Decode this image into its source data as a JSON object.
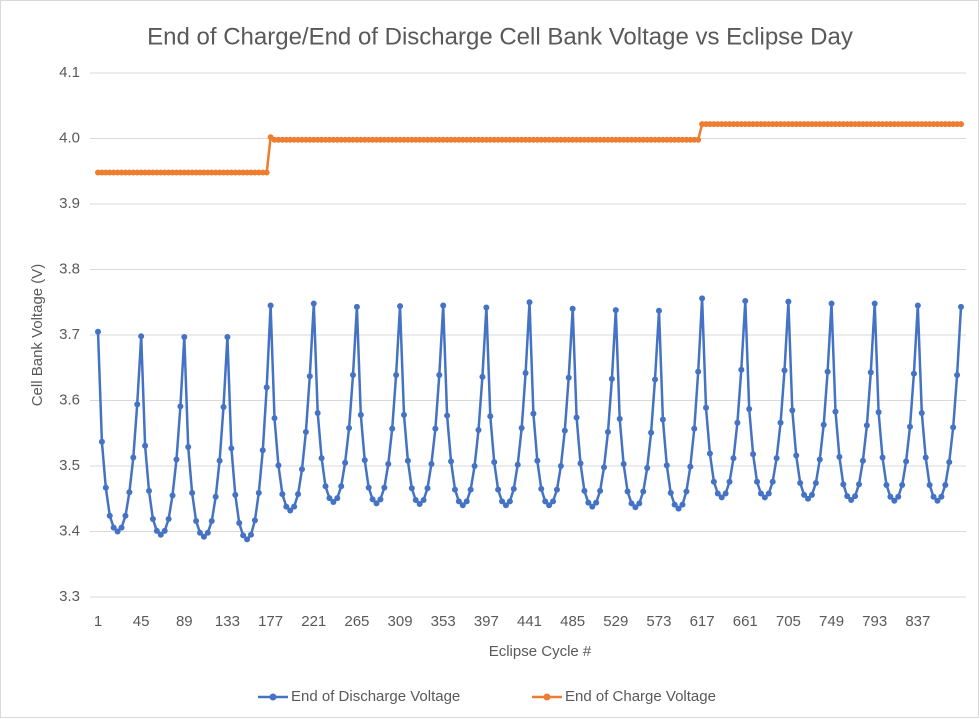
{
  "chart_data": {
    "type": "line",
    "title": "End of Charge/End of Discharge Cell Bank Voltage vs Eclipse Day",
    "xlabel": "Eclipse Cycle #",
    "ylabel": "Cell Bank Voltage (V)",
    "xlim": [
      1,
      881
    ],
    "xticks": [
      1,
      45,
      89,
      133,
      177,
      221,
      265,
      309,
      353,
      397,
      441,
      485,
      529,
      573,
      617,
      661,
      705,
      749,
      793,
      837
    ],
    "ylim": [
      3.3,
      4.1
    ],
    "yticks": [
      3.3,
      3.4,
      3.5,
      3.6,
      3.7,
      3.8,
      3.9,
      {
        "value": 4,
        "label": "4.0"
      },
      4.1
    ],
    "grid": true,
    "legend": "bottom",
    "x": [
      1,
      5,
      9,
      13,
      17,
      21,
      25,
      29,
      33,
      37,
      41,
      45,
      49,
      53,
      57,
      61,
      65,
      69,
      73,
      77,
      81,
      85,
      89,
      93,
      97,
      101,
      105,
      109,
      113,
      117,
      121,
      125,
      129,
      133,
      137,
      141,
      145,
      149,
      153,
      157,
      161,
      165,
      169,
      173,
      177,
      181,
      185,
      189,
      193,
      197,
      201,
      205,
      209,
      213,
      217,
      221,
      225,
      229,
      233,
      237,
      241,
      245,
      249,
      253,
      257,
      261,
      265,
      269,
      273,
      277,
      281,
      285,
      289,
      293,
      297,
      301,
      305,
      309,
      313,
      317,
      321,
      325,
      329,
      333,
      337,
      341,
      345,
      349,
      353,
      357,
      361,
      365,
      369,
      373,
      377,
      381,
      385,
      389,
      393,
      397,
      401,
      405,
      409,
      413,
      417,
      421,
      425,
      429,
      433,
      437,
      441,
      445,
      449,
      453,
      457,
      461,
      465,
      469,
      473,
      477,
      481,
      485,
      489,
      493,
      497,
      501,
      505,
      509,
      513,
      517,
      521,
      525,
      529,
      533,
      537,
      541,
      545,
      549,
      553,
      557,
      561,
      565,
      569,
      573,
      577,
      581,
      585,
      589,
      593,
      597,
      601,
      605,
      609,
      613,
      617,
      621,
      625,
      629,
      633,
      637,
      641,
      645,
      649,
      653,
      657,
      661,
      665,
      669,
      673,
      677,
      681,
      685,
      689,
      693,
      697,
      701,
      705,
      709,
      713,
      717,
      721,
      725,
      729,
      733,
      737,
      741,
      745,
      749,
      753,
      757,
      761,
      765,
      769,
      773,
      777,
      781,
      785,
      789,
      793,
      797,
      801,
      805,
      809,
      813,
      817,
      821,
      825,
      829,
      833,
      837,
      841,
      845,
      849,
      853,
      857,
      861,
      865,
      869,
      873,
      877,
      881
    ],
    "series": [
      {
        "name": "End of Discharge Voltage",
        "color": "#4472c4",
        "values": [
          3.705,
          3.537,
          3.467,
          3.424,
          3.406,
          3.4,
          3.406,
          3.424,
          3.46,
          3.513,
          3.594,
          3.698,
          3.531,
          3.462,
          3.419,
          3.401,
          3.395,
          3.401,
          3.419,
          3.455,
          3.51,
          3.591,
          3.697,
          3.529,
          3.459,
          3.416,
          3.398,
          3.392,
          3.398,
          3.416,
          3.453,
          3.508,
          3.59,
          3.697,
          3.527,
          3.456,
          3.413,
          3.394,
          3.388,
          3.395,
          3.417,
          3.459,
          3.524,
          3.62,
          3.745,
          3.573,
          3.501,
          3.457,
          3.438,
          3.432,
          3.438,
          3.457,
          3.495,
          3.552,
          3.637,
          3.748,
          3.581,
          3.512,
          3.469,
          3.451,
          3.445,
          3.451,
          3.469,
          3.505,
          3.558,
          3.639,
          3.743,
          3.578,
          3.509,
          3.467,
          3.449,
          3.443,
          3.449,
          3.467,
          3.503,
          3.557,
          3.639,
          3.744,
          3.578,
          3.508,
          3.466,
          3.448,
          3.442,
          3.448,
          3.466,
          3.503,
          3.557,
          3.639,
          3.745,
          3.577,
          3.507,
          3.464,
          3.446,
          3.44,
          3.446,
          3.464,
          3.5,
          3.555,
          3.636,
          3.742,
          3.576,
          3.506,
          3.464,
          3.446,
          3.44,
          3.446,
          3.465,
          3.502,
          3.558,
          3.642,
          3.75,
          3.58,
          3.508,
          3.465,
          3.446,
          3.44,
          3.446,
          3.464,
          3.5,
          3.554,
          3.635,
          3.74,
          3.574,
          3.504,
          3.462,
          3.444,
          3.438,
          3.444,
          3.462,
          3.498,
          3.552,
          3.633,
          3.738,
          3.572,
          3.503,
          3.461,
          3.443,
          3.437,
          3.443,
          3.461,
          3.497,
          3.551,
          3.632,
          3.737,
          3.571,
          3.501,
          3.459,
          3.441,
          3.435,
          3.441,
          3.461,
          3.499,
          3.557,
          3.644,
          3.756,
          3.589,
          3.519,
          3.476,
          3.458,
          3.452,
          3.458,
          3.476,
          3.512,
          3.566,
          3.647,
          3.752,
          3.587,
          3.518,
          3.476,
          3.458,
          3.452,
          3.458,
          3.476,
          3.512,
          3.566,
          3.646,
          3.751,
          3.585,
          3.516,
          3.474,
          3.456,
          3.45,
          3.456,
          3.474,
          3.51,
          3.563,
          3.644,
          3.748,
          3.583,
          3.514,
          3.472,
          3.454,
          3.448,
          3.454,
          3.472,
          3.508,
          3.562,
          3.643,
          3.748,
          3.582,
          3.513,
          3.471,
          3.453,
          3.447,
          3.453,
          3.471,
          3.507,
          3.56,
          3.641,
          3.745,
          3.581,
          3.513,
          3.471,
          3.453,
          3.447,
          3.453,
          3.471,
          3.506,
          3.559,
          3.639,
          3.743
        ]
      },
      {
        "name": "End of Charge Voltage",
        "color": "#ed7d31",
        "values": [
          3.948,
          3.948,
          3.948,
          3.948,
          3.948,
          3.948,
          3.948,
          3.948,
          3.948,
          3.948,
          3.948,
          3.948,
          3.948,
          3.948,
          3.948,
          3.948,
          3.948,
          3.948,
          3.948,
          3.948,
          3.948,
          3.948,
          3.948,
          3.948,
          3.948,
          3.948,
          3.948,
          3.948,
          3.948,
          3.948,
          3.948,
          3.948,
          3.948,
          3.948,
          3.948,
          3.948,
          3.948,
          3.948,
          3.948,
          3.948,
          3.948,
          3.948,
          3.948,
          3.948,
          4.002,
          3.998,
          3.998,
          3.998,
          3.998,
          3.998,
          3.998,
          3.998,
          3.998,
          3.998,
          3.998,
          3.998,
          3.998,
          3.998,
          3.998,
          3.998,
          3.998,
          3.998,
          3.998,
          3.998,
          3.998,
          3.998,
          3.998,
          3.998,
          3.998,
          3.998,
          3.998,
          3.998,
          3.998,
          3.998,
          3.998,
          3.998,
          3.998,
          3.998,
          3.998,
          3.998,
          3.998,
          3.998,
          3.998,
          3.998,
          3.998,
          3.998,
          3.998,
          3.998,
          3.998,
          3.998,
          3.998,
          3.998,
          3.998,
          3.998,
          3.998,
          3.998,
          3.998,
          3.998,
          3.998,
          3.998,
          3.998,
          3.998,
          3.998,
          3.998,
          3.998,
          3.998,
          3.998,
          3.998,
          3.998,
          3.998,
          3.998,
          3.998,
          3.998,
          3.998,
          3.998,
          3.998,
          3.998,
          3.998,
          3.998,
          3.998,
          3.998,
          3.998,
          3.998,
          3.998,
          3.998,
          3.998,
          3.998,
          3.998,
          3.998,
          3.998,
          3.998,
          3.998,
          3.998,
          3.998,
          3.998,
          3.998,
          3.998,
          3.998,
          3.998,
          3.998,
          3.998,
          3.998,
          3.998,
          3.998,
          3.998,
          3.998,
          3.998,
          3.998,
          3.998,
          3.998,
          3.998,
          3.998,
          3.998,
          3.998,
          4.022,
          4.022,
          4.022,
          4.022,
          4.022,
          4.022,
          4.022,
          4.022,
          4.022,
          4.022,
          4.022,
          4.022,
          4.022,
          4.022,
          4.022,
          4.022,
          4.022,
          4.022,
          4.022,
          4.022,
          4.022,
          4.022,
          4.022,
          4.022,
          4.022,
          4.022,
          4.022,
          4.022,
          4.022,
          4.022,
          4.022,
          4.022,
          4.022,
          4.022,
          4.022,
          4.022,
          4.022,
          4.022,
          4.022,
          4.022,
          4.022,
          4.022,
          4.022,
          4.022,
          4.022,
          4.022,
          4.022,
          4.022,
          4.022,
          4.022,
          4.022,
          4.022,
          4.022,
          4.022,
          4.022,
          4.022,
          4.022,
          4.022,
          4.022,
          4.022,
          4.022,
          4.022,
          4.022,
          4.022,
          4.022,
          4.022,
          4.022
        ]
      }
    ]
  }
}
